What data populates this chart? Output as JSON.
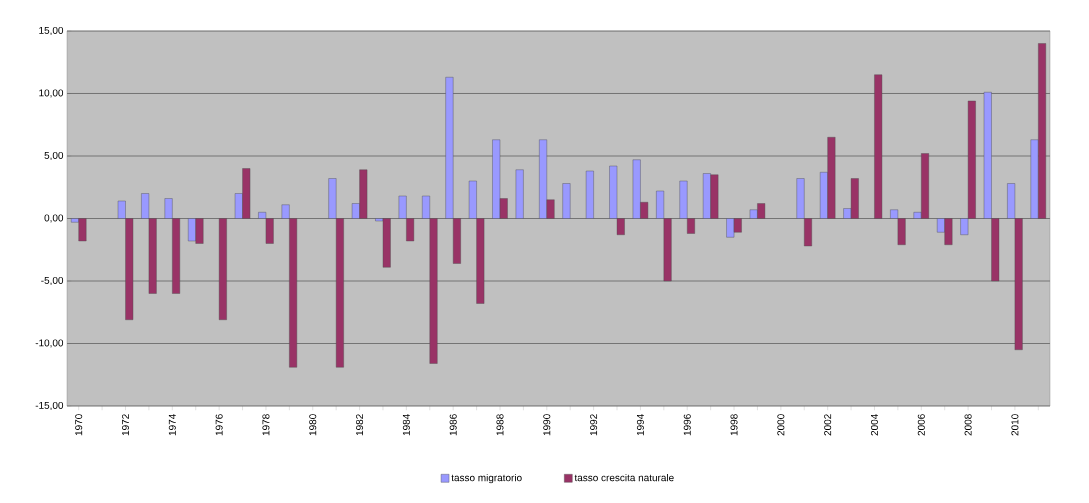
{
  "chart_data": {
    "type": "bar",
    "categories": [
      "1970",
      null,
      "1972",
      null,
      "1974",
      null,
      "1976",
      null,
      "1978",
      null,
      "1980",
      null,
      "1982",
      null,
      "1984",
      null,
      "1986",
      null,
      "1988",
      null,
      "1990",
      null,
      "1992",
      null,
      "1994",
      null,
      "1996",
      null,
      "1998",
      null,
      "2000",
      null,
      "2002",
      null,
      "2004",
      null,
      "2006",
      null,
      "2008",
      null,
      "2010",
      null
    ],
    "series": [
      {
        "name": "tasso migratorio",
        "color": "#9999ff",
        "values": [
          -0.3,
          null,
          1.4,
          2.0,
          1.6,
          -1.8,
          null,
          2.0,
          0.5,
          1.1,
          null,
          3.2,
          1.2,
          -0.2,
          1.8,
          1.8,
          11.3,
          3.0,
          6.3,
          3.9,
          6.3,
          2.8,
          3.8,
          4.2,
          4.7,
          2.2,
          3.0,
          3.6,
          -1.5,
          0.7,
          null,
          3.2,
          3.7,
          0.8,
          null,
          0.7,
          0.5,
          -1.1,
          -1.3,
          10.1,
          2.8,
          6.3
        ]
      },
      {
        "name": "tasso crescita naturale",
        "color": "#993366",
        "values": [
          -1.8,
          null,
          -8.1,
          -6.0,
          -6.0,
          -2.0,
          -8.1,
          4.0,
          -2.0,
          -11.9,
          null,
          -11.9,
          3.9,
          -3.9,
          -1.8,
          -11.6,
          -3.6,
          -6.8,
          1.6,
          null,
          1.5,
          null,
          null,
          -1.3,
          1.3,
          -5.0,
          -1.2,
          3.5,
          -1.1,
          1.2,
          null,
          -2.2,
          6.5,
          3.2,
          11.5,
          -2.1,
          5.2,
          -2.1,
          9.4,
          -5.0,
          -10.5,
          14.0
        ]
      }
    ],
    "ylim": [
      -15,
      15
    ],
    "yticks": [
      {
        "value": -15,
        "label": "-15,00"
      },
      {
        "value": -10,
        "label": "-10,00"
      },
      {
        "value": -5,
        "label": "-5,00"
      },
      {
        "value": 0,
        "label": "0,00"
      },
      {
        "value": 5,
        "label": "5,00"
      },
      {
        "value": 10,
        "label": "10,00"
      },
      {
        "value": 15,
        "label": "15,00"
      }
    ],
    "grid": "y",
    "legend": "bottom"
  }
}
